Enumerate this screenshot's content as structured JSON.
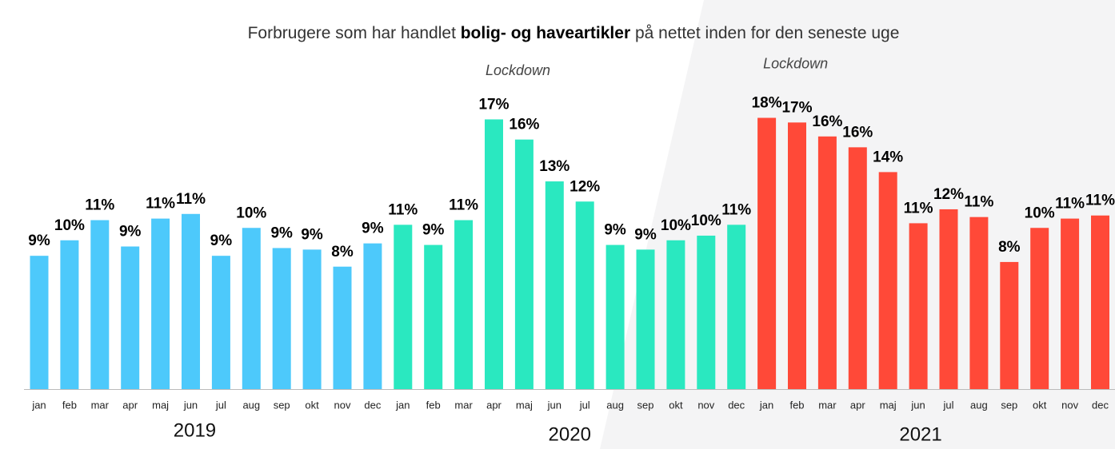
{
  "chart_data": {
    "type": "bar",
    "title": [
      "Forbrugere som har handlet ",
      "bolig- og haveartikler",
      " på nettet inden for den seneste uge"
    ],
    "annotations": [
      {
        "text": "Lockdown",
        "series": 1,
        "index": 3
      },
      {
        "text": "Lockdown",
        "series": 2,
        "index": 0
      }
    ],
    "categories": [
      "jan",
      "feb",
      "mar",
      "apr",
      "maj",
      "jun",
      "jul",
      "aug",
      "sep",
      "okt",
      "nov",
      "dec"
    ],
    "ylim": [
      0,
      20
    ],
    "series": [
      {
        "name": "2019",
        "color": "#4dc9fb",
        "values": [
          8.6,
          9.6,
          10.9,
          9.2,
          11.0,
          11.3,
          8.6,
          10.4,
          9.1,
          9.0,
          7.9,
          9.4
        ],
        "value_labels": [
          "9%",
          "10%",
          "11%",
          "9%",
          "11%",
          "11%",
          "9%",
          "10%",
          "9%",
          "9%",
          "8%",
          "9%"
        ]
      },
      {
        "name": "2020",
        "color": "#2ae8c0",
        "values": [
          10.6,
          9.3,
          10.9,
          17.4,
          16.1,
          13.4,
          12.1,
          9.3,
          9.0,
          9.6,
          9.9,
          10.6
        ],
        "value_labels": [
          "11%",
          "9%",
          "11%",
          "17%",
          "16%",
          "13%",
          "12%",
          "9%",
          "9%",
          "10%",
          "10%",
          "11%"
        ]
      },
      {
        "name": "2021",
        "color": "#ff4938",
        "values": [
          17.5,
          17.2,
          16.3,
          15.6,
          14.0,
          10.7,
          11.6,
          11.1,
          8.2,
          10.4,
          11.0,
          11.2
        ],
        "value_labels": [
          "18%",
          "17%",
          "16%",
          "16%",
          "14%",
          "11%",
          "12%",
          "11%",
          "8%",
          "10%",
          "11%",
          "11%"
        ]
      }
    ]
  }
}
